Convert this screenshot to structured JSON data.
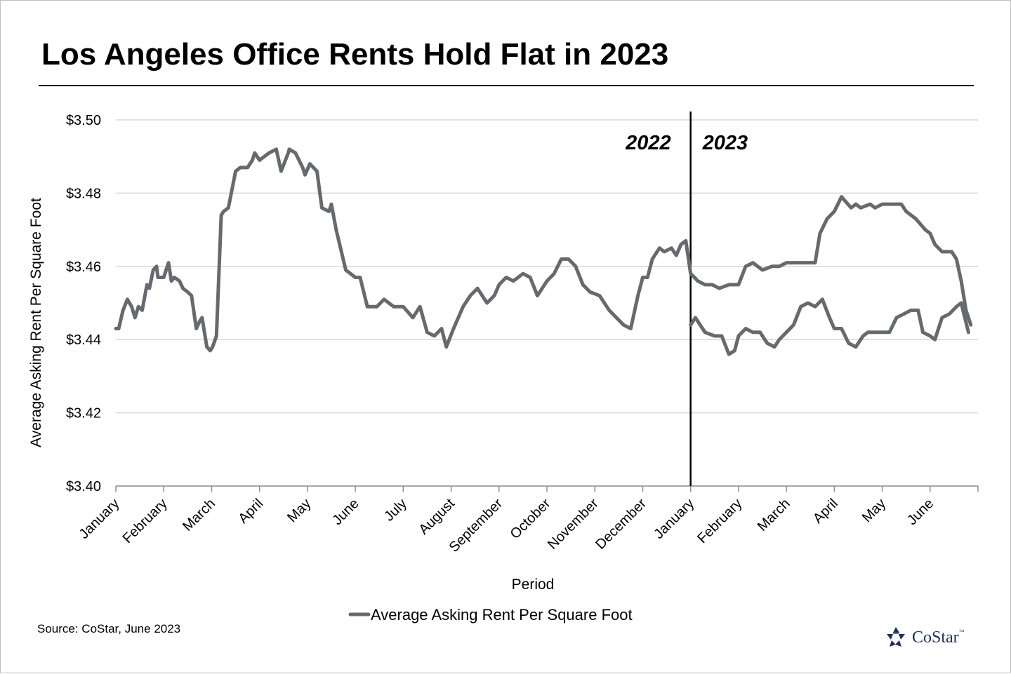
{
  "title": "Los Angeles Office Rents Hold Flat in 2023",
  "source": "Source: CoStar, June 2023",
  "logo": {
    "text": "CoStar",
    "tm": "™"
  },
  "chart_data": {
    "type": "line",
    "title": "Los Angeles Office Rents Hold Flat in 2023",
    "xlabel": "Period",
    "ylabel": "Average Asking Rent Per Square Foot",
    "ylim": [
      3.4,
      3.5
    ],
    "yticks": [
      3.4,
      3.42,
      3.44,
      3.46,
      3.48,
      3.5
    ],
    "ytick_labels": [
      "$3.40",
      "$3.42",
      "$3.44",
      "$3.46",
      "$3.48",
      "$3.50"
    ],
    "grid": "horizontal",
    "legend": {
      "position": "bottom",
      "entries": [
        "Average Asking Rent Per Square Foot"
      ]
    },
    "color": "#666a6e",
    "months": [
      "January",
      "February",
      "March",
      "April",
      "May",
      "June",
      "July",
      "August",
      "September",
      "October",
      "November",
      "December",
      "January",
      "February",
      "March",
      "April",
      "May",
      "June"
    ],
    "divider": {
      "at_month_index": 12,
      "left_label": "2022",
      "right_label": "2023"
    },
    "series": [
      {
        "name": "Average Asking Rent Per Square Foot",
        "x": [
          0,
          0.06,
          0.15,
          0.24,
          0.33,
          0.4,
          0.47,
          0.55,
          0.65,
          0.7,
          0.78,
          0.85,
          0.88,
          1.0,
          1.05,
          1.1,
          1.16,
          1.22,
          1.33,
          1.4,
          1.5,
          1.58,
          1.68,
          1.75,
          1.8,
          1.9,
          1.97,
          2.02,
          2.1,
          2.2,
          2.25,
          2.35,
          2.5,
          2.6,
          2.75,
          2.85,
          2.9,
          3.0,
          3.2,
          3.35,
          3.45,
          3.6,
          3.62,
          3.75,
          3.9,
          3.95,
          4.05,
          4.2,
          4.3,
          4.45,
          4.5,
          4.6,
          4.8,
          5.0,
          5.1,
          5.25,
          5.45,
          5.6,
          5.8,
          6.0,
          6.2,
          6.35,
          6.5,
          6.65,
          6.8,
          6.9,
          7.05,
          7.25,
          7.4,
          7.55,
          7.75,
          7.9,
          8.0,
          8.15,
          8.3,
          8.5,
          8.65,
          8.8,
          9.0,
          9.15,
          9.3,
          9.45,
          9.6,
          9.75,
          9.9,
          10.1,
          10.3,
          10.45,
          10.6,
          10.75,
          10.9,
          11.0,
          11.1,
          11.2,
          11.35,
          11.45,
          11.6,
          11.7,
          11.8,
          11.9,
          12.0,
          12.08,
          12.15,
          12.3,
          12.45,
          12.6,
          12.8,
          12.92,
          13.0,
          13.15,
          13.3,
          13.5,
          13.7,
          13.85,
          14.0,
          14.2,
          14.4,
          14.6,
          14.7,
          14.85,
          15.0,
          15.15,
          15.35,
          15.45,
          15.55,
          15.75,
          15.85,
          16.0,
          16.2,
          16.4,
          16.5,
          16.7,
          16.9,
          17.0,
          17.1,
          17.25,
          17.35,
          17.45,
          17.55,
          17.65,
          17.75,
          17.85
        ],
        "values": [
          3.443,
          3.443,
          3.448,
          3.451,
          3.449,
          3.446,
          3.449,
          3.448,
          3.455,
          3.454,
          3.459,
          3.46,
          3.457,
          3.457,
          3.459,
          3.461,
          3.456,
          3.457,
          3.456,
          3.454,
          3.453,
          3.452,
          3.443,
          3.445,
          3.446,
          3.438,
          3.437,
          3.438,
          3.441,
          3.474,
          3.475,
          3.476,
          3.486,
          3.487,
          3.487,
          3.489,
          3.491,
          3.489,
          3.491,
          3.492,
          3.486,
          3.491,
          3.492,
          3.491,
          3.487,
          3.485,
          3.488,
          3.486,
          3.476,
          3.475,
          3.477,
          3.47,
          3.459,
          3.457,
          3.457,
          3.449,
          3.449,
          3.451,
          3.449,
          3.449,
          3.446,
          3.449,
          3.442,
          3.441,
          3.443,
          3.438,
          3.443,
          3.449,
          3.452,
          3.454,
          3.45,
          3.452,
          3.455,
          3.457,
          3.456,
          3.458,
          3.457,
          3.452,
          3.456,
          3.458,
          3.462,
          3.462,
          3.46,
          3.455,
          3.453,
          3.452,
          3.448,
          3.446,
          3.444,
          3.443,
          3.452,
          3.457,
          3.457,
          3.462,
          3.465,
          3.464,
          3.465,
          3.463,
          3.466,
          3.467,
          3.458,
          3.457,
          3.456,
          3.455,
          3.455,
          3.454,
          3.455,
          3.455,
          3.455,
          3.46,
          3.461,
          3.459,
          3.46,
          3.46,
          3.461,
          3.461,
          3.461,
          3.461,
          3.469,
          3.473,
          3.475,
          3.479,
          3.476,
          3.477,
          3.476,
          3.477,
          3.476,
          3.477,
          3.477,
          3.477,
          3.475,
          3.473,
          3.47,
          3.469,
          3.466,
          3.464,
          3.464,
          3.464,
          3.462,
          3.456,
          3.448,
          3.444
        ]
      },
      {
        "name": "Average Asking Rent Per Square Foot",
        "x": [
          0.0,
          0.1,
          0.3,
          0.5,
          0.65,
          0.8,
          0.92,
          1.0,
          1.15,
          1.3,
          1.45,
          1.6,
          1.75,
          1.85,
          2.0,
          2.15,
          2.3,
          2.45,
          2.6,
          2.75,
          2.9,
          3.0,
          3.15,
          3.3,
          3.45,
          3.6,
          3.7,
          3.85,
          4.0,
          4.15,
          4.3,
          4.45,
          4.6,
          4.75,
          4.85,
          5.0,
          5.1,
          5.25,
          5.4,
          5.55,
          5.65,
          5.8
        ],
        "values": [
          3.444,
          3.446,
          3.442,
          3.441,
          3.441,
          3.436,
          3.437,
          3.441,
          3.443,
          3.442,
          3.442,
          3.439,
          3.438,
          3.44,
          3.442,
          3.444,
          3.449,
          3.45,
          3.449,
          3.451,
          3.446,
          3.443,
          3.443,
          3.439,
          3.438,
          3.441,
          3.442,
          3.442,
          3.442,
          3.442,
          3.446,
          3.447,
          3.448,
          3.448,
          3.442,
          3.441,
          3.44,
          3.446,
          3.447,
          3.449,
          3.45,
          3.442
        ]
      }
    ]
  }
}
